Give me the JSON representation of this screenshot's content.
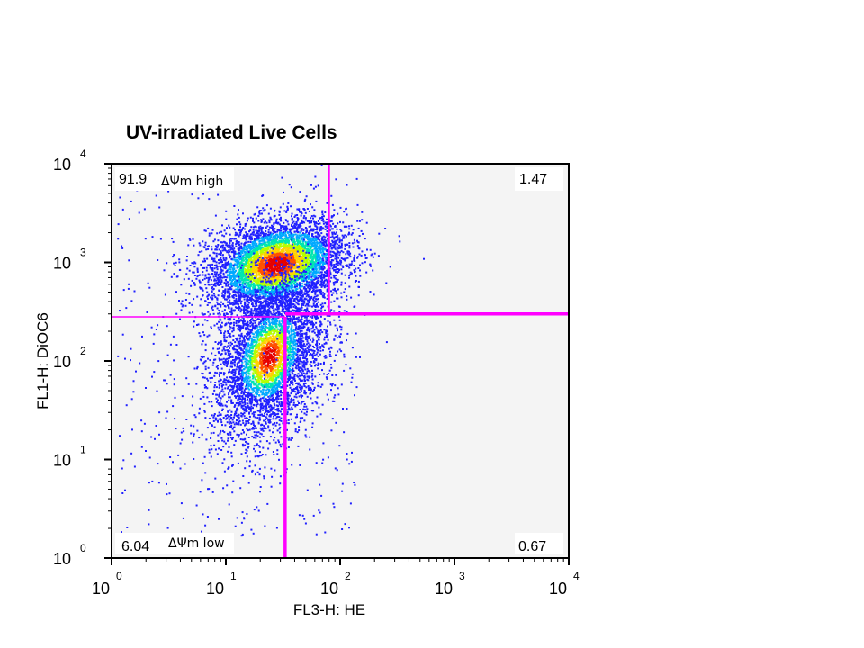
{
  "chart_data": {
    "type": "scatter",
    "title": "UV-irradiated Live Cells",
    "xlabel": "FL3-H: HE",
    "ylabel": "FL1-H: DiOC6",
    "scale": "log",
    "xlim": [
      1,
      10000
    ],
    "ylim": [
      1,
      10000
    ],
    "x_ticks": [
      {
        "base": "10",
        "exp": "0",
        "value": 1
      },
      {
        "base": "10",
        "exp": "1",
        "value": 10
      },
      {
        "base": "10",
        "exp": "2",
        "value": 100
      },
      {
        "base": "10",
        "exp": "3",
        "value": 1000
      },
      {
        "base": "10",
        "exp": "4",
        "value": 10000
      }
    ],
    "y_ticks": [
      {
        "base": "10",
        "exp": "0",
        "value": 1
      },
      {
        "base": "10",
        "exp": "1",
        "value": 10
      },
      {
        "base": "10",
        "exp": "2",
        "value": 100
      },
      {
        "base": "10",
        "exp": "3",
        "value": 1000
      },
      {
        "base": "10",
        "exp": "4",
        "value": 10000
      }
    ],
    "quadrant_gates": {
      "upper_vertical_x": 80,
      "lower_vertical_x": 33,
      "left_horizontal_y": 280,
      "right_horizontal_y": 300,
      "color": "#ff00ff"
    },
    "quadrants": {
      "upper_left": {
        "value": "91.9",
        "note": "ΔΨm high"
      },
      "upper_right": {
        "value": "1.47"
      },
      "lower_left": {
        "value": "6.04",
        "note": "ΔΨm low"
      },
      "lower_right": {
        "value": "0.67"
      }
    },
    "populations": [
      {
        "name": "",
        "center_x": 28,
        "center_y": 950,
        "spread_x_decades": 0.3,
        "spread_y_decades": 0.22
      },
      {
        "name": "",
        "center_x": 24,
        "center_y": 110,
        "spread_x_decades": 0.24,
        "spread_y_decades": 0.4
      }
    ],
    "density_colors": [
      "#2020ff",
      "#00aaff",
      "#00e6b0",
      "#b4ff00",
      "#ffd200",
      "#ff5000",
      "#e60000"
    ],
    "plot_background": "#f4f4f4"
  }
}
